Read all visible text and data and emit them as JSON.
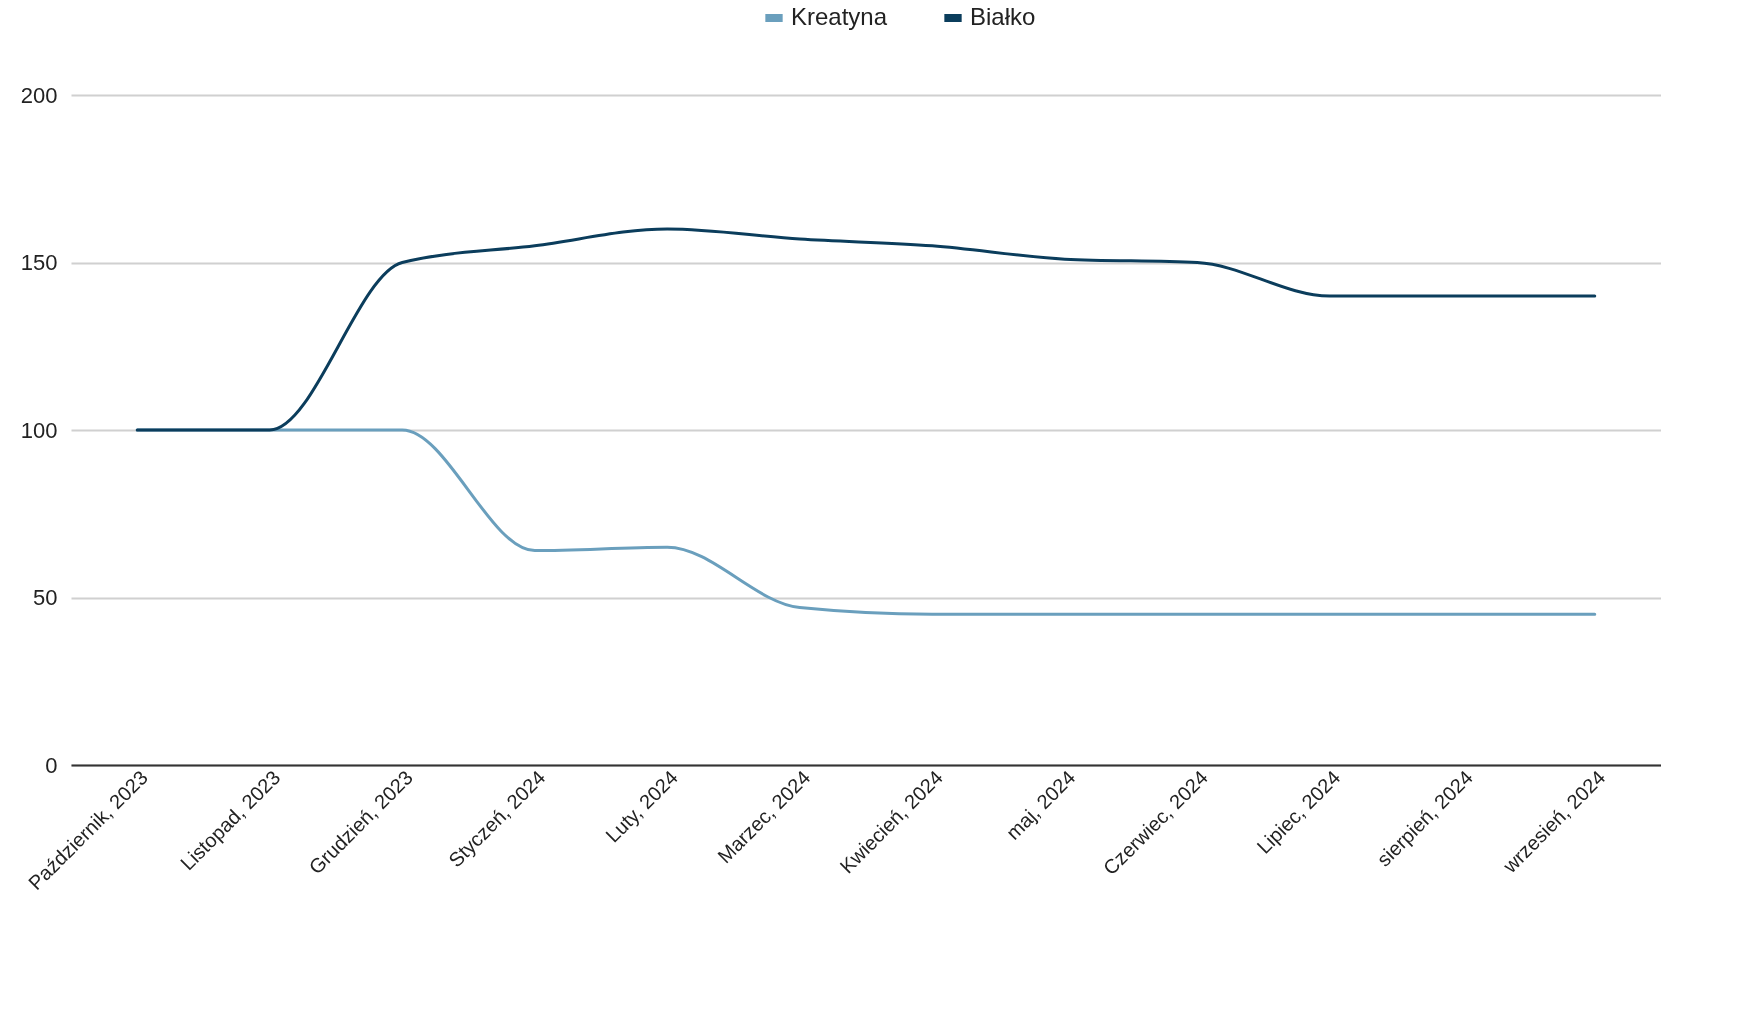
{
  "chart_data": {
    "type": "line",
    "categories": [
      "Październik, 2023",
      "Listopad, 2023",
      "Grudzień, 2023",
      "Styczeń, 2024",
      "Luty, 2024",
      "Marzec, 2024",
      "Kwiecień, 2024",
      "maj, 2024",
      "Czerwiec, 2024",
      "Lipiec, 2024",
      "sierpień, 2024",
      "wrzesień, 2024"
    ],
    "series": [
      {
        "name": "Kreatyna",
        "color": "#6a9fbd",
        "values": [
          100,
          100,
          100,
          64,
          65,
          47,
          45,
          45,
          45,
          45,
          45,
          45
        ]
      },
      {
        "name": "Białko",
        "color": "#0b3d5c",
        "values": [
          100,
          100,
          150,
          155,
          160,
          157,
          155,
          151,
          150,
          140,
          140,
          140
        ]
      }
    ],
    "ylim": [
      0,
      200
    ],
    "yticks": [
      0,
      50,
      100,
      150,
      200
    ],
    "grid": "y",
    "legend": "top",
    "marker": "none",
    "line_style": "solid"
  }
}
